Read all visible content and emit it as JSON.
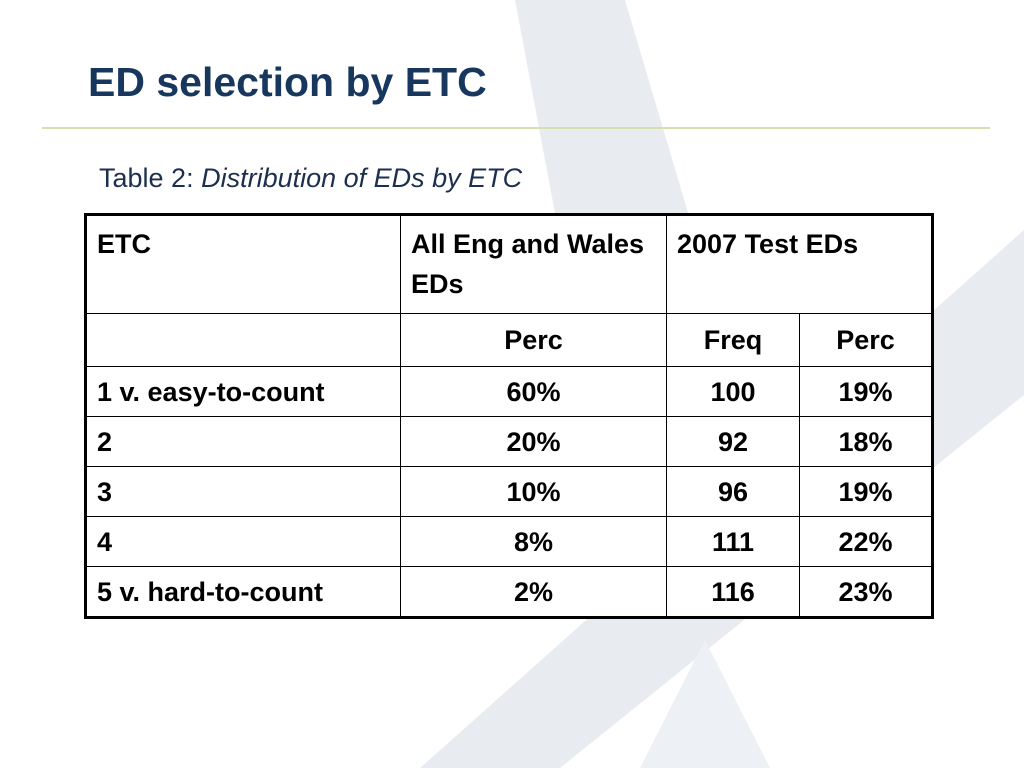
{
  "slide": {
    "title": "ED selection by ETC"
  },
  "caption": {
    "prefix": "Table 2: ",
    "text": "Distribution of EDs by ETC"
  },
  "table": {
    "header1": {
      "etc": "ETC",
      "all": "All Eng and Wales EDs",
      "test": "2007 Test EDs"
    },
    "header2": {
      "etc": "",
      "all_perc": "Perc",
      "test_freq": "Freq",
      "test_perc": "Perc"
    },
    "rows": [
      {
        "etc": "1 v. easy-to-count",
        "all_perc": "60%",
        "freq": "100",
        "perc": "19%"
      },
      {
        "etc": "2",
        "all_perc": "20%",
        "freq": "92",
        "perc": "18%"
      },
      {
        "etc": "3",
        "all_perc": "10%",
        "freq": "96",
        "perc": "19%"
      },
      {
        "etc": "4",
        "all_perc": "8%",
        "freq": "111",
        "perc": "22%"
      },
      {
        "etc": "5 v. hard-to-count",
        "all_perc": "2%",
        "freq": "116",
        "perc": "23%"
      }
    ]
  },
  "colors": {
    "title": "#17375e",
    "rule": "#d6dfae",
    "watermark": "#e6ebf0"
  }
}
